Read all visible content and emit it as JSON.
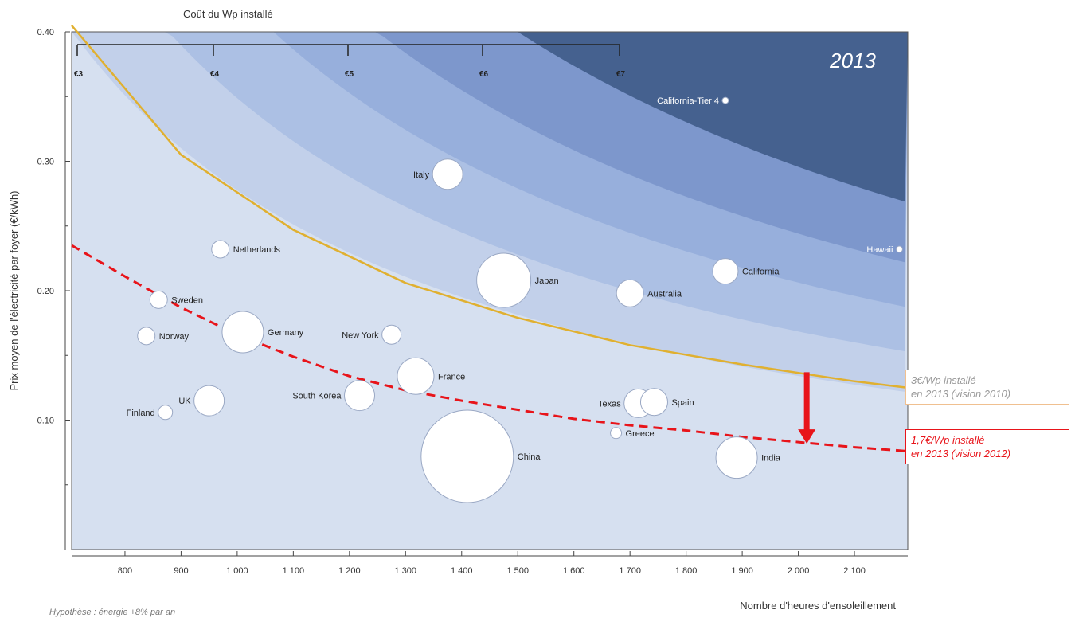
{
  "chart_data": {
    "type": "bubble",
    "year_label": "2013",
    "top_axis_title": "Coût du Wp installé",
    "top_axis_ticks": [
      "€3",
      "€4",
      "€5",
      "€6",
      "€7"
    ],
    "xlabel": "Nombre d'heures d'ensoleillement",
    "ylabel": "Prix moyen de l'électricité par foyer (€/kWh)",
    "xlim": [
      705,
      2195
    ],
    "ylim": [
      0.0,
      0.4
    ],
    "x_ticks": [
      "800",
      "900",
      "1 000",
      "1 100",
      "1 200",
      "1 300",
      "1 400",
      "1 500",
      "1 600",
      "1 700",
      "1 800",
      "1 900",
      "2 000",
      "2 100"
    ],
    "y_ticks": [
      "0.10",
      "0.20",
      "0.30",
      "0.40"
    ],
    "points": [
      {
        "label": "California-Tier 4",
        "x": 1870,
        "y": 0.347,
        "r": 4
      },
      {
        "label": "Italy",
        "x": 1375,
        "y": 0.29,
        "r": 19
      },
      {
        "label": "Netherlands",
        "x": 970,
        "y": 0.232,
        "r": 11
      },
      {
        "label": "Hawaii",
        "x": 2180,
        "y": 0.232,
        "r": 4
      },
      {
        "label": "California",
        "x": 1870,
        "y": 0.215,
        "r": 16
      },
      {
        "label": "Japan",
        "x": 1475,
        "y": 0.208,
        "r": 34
      },
      {
        "label": "Australia",
        "x": 1700,
        "y": 0.198,
        "r": 17
      },
      {
        "label": "Sweden",
        "x": 860,
        "y": 0.193,
        "r": 11
      },
      {
        "label": "Germany",
        "x": 1010,
        "y": 0.168,
        "r": 26
      },
      {
        "label": "New York",
        "x": 1275,
        "y": 0.166,
        "r": 12
      },
      {
        "label": "Norway",
        "x": 838,
        "y": 0.165,
        "r": 11
      },
      {
        "label": "France",
        "x": 1318,
        "y": 0.134,
        "r": 23
      },
      {
        "label": "South Korea",
        "x": 1218,
        "y": 0.119,
        "r": 19
      },
      {
        "label": "UK",
        "x": 950,
        "y": 0.115,
        "r": 19
      },
      {
        "label": "Texas",
        "x": 1715,
        "y": 0.113,
        "r": 18
      },
      {
        "label": "Spain",
        "x": 1743,
        "y": 0.114,
        "r": 17
      },
      {
        "label": "Finland",
        "x": 872,
        "y": 0.106,
        "r": 9
      },
      {
        "label": "Greece",
        "x": 1675,
        "y": 0.09,
        "r": 7
      },
      {
        "label": "China",
        "x": 1410,
        "y": 0.072,
        "r": 58
      },
      {
        "label": "India",
        "x": 1890,
        "y": 0.071,
        "r": 26
      }
    ],
    "curves": [
      {
        "name": "3€/Wp installé en 2013 (vision 2010)",
        "color": "#e0b030",
        "x": [
          705,
          900,
          1100,
          1300,
          1500,
          1700,
          1900,
          2100,
          2195
        ],
        "y": [
          0.405,
          0.305,
          0.247,
          0.206,
          0.179,
          0.158,
          0.143,
          0.13,
          0.125
        ]
      },
      {
        "name": "1,7€/Wp installé en 2013 (vision 2012)",
        "color": "#e8141a",
        "x": [
          705,
          800,
          900,
          1000,
          1100,
          1200,
          1300,
          1400,
          1500,
          1600,
          1700,
          1800,
          1900,
          2000,
          2100,
          2195
        ],
        "y": [
          0.235,
          0.211,
          0.187,
          0.166,
          0.149,
          0.134,
          0.123,
          0.115,
          0.108,
          0.101,
          0.096,
          0.092,
          0.087,
          0.083,
          0.079,
          0.076
        ]
      }
    ],
    "arrow": {
      "x": 2015,
      "from_y": 0.137,
      "to_y": 0.083,
      "color": "#e8141a"
    },
    "colors": {
      "band1": "#d6e0f0",
      "band2": "#c2d0ea",
      "band3": "#acc0e4",
      "band4": "#97afdc",
      "band5": "#7d97cc",
      "band6": "#45618f"
    }
  },
  "callouts": {
    "vision2010_line1": "3€/Wp installé",
    "vision2010_line2": "en 2013 (vision 2010)",
    "vision2012_line1": "1,7€/Wp installé",
    "vision2012_line2": "en 2013 (vision 2012)"
  },
  "footnote": "Hypothèse :  énergie +8% par an"
}
